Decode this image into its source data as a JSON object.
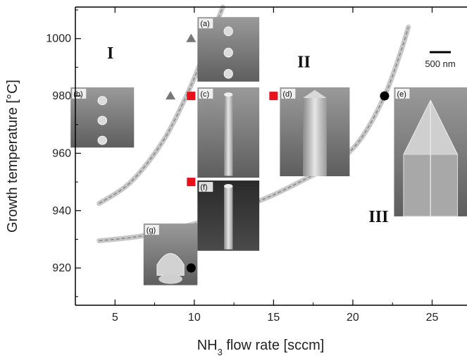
{
  "chart_data": {
    "type": "scatter",
    "title": "",
    "xlabel": "NH3 flow rate [sccm]",
    "xlabel_parts": {
      "base": "NH",
      "sub": "3",
      "rest": " flow rate [sccm]"
    },
    "ylabel": "Growth temperature [°C]",
    "xlim": [
      2.5,
      27.2
    ],
    "ylim": [
      907,
      1011
    ],
    "x_ticks": [
      5,
      10,
      15,
      20,
      25
    ],
    "y_ticks": [
      920,
      940,
      960,
      980,
      1000
    ],
    "grid": false,
    "legend": "none",
    "series": [
      {
        "marker": "triangle",
        "color": "#777777",
        "points": [
          {
            "x": 9.8,
            "y": 1000
          },
          {
            "x": 8.5,
            "y": 980
          }
        ]
      },
      {
        "marker": "square",
        "color": "#e8101a",
        "points": [
          {
            "x": 9.8,
            "y": 980
          },
          {
            "x": 15.0,
            "y": 980
          },
          {
            "x": 9.8,
            "y": 950
          }
        ]
      },
      {
        "marker": "circle",
        "color": "#000000",
        "points": [
          {
            "x": 22.0,
            "y": 980
          },
          {
            "x": 9.8,
            "y": 920
          }
        ]
      }
    ],
    "boundaries": [
      {
        "name": "I-II",
        "points": [
          [
            4.0,
            942.5
          ],
          [
            6.0,
            950
          ],
          [
            8.0,
            964
          ],
          [
            9.5,
            980
          ],
          [
            10.5,
            993
          ],
          [
            11.3,
            1004
          ],
          [
            11.8,
            1011
          ]
        ]
      },
      {
        "name": "II-III",
        "points": [
          [
            4.0,
            929.5
          ],
          [
            6.5,
            931
          ],
          [
            9.0,
            934
          ],
          [
            11.0,
            937
          ],
          [
            13.0,
            941
          ],
          [
            15.0,
            945.5
          ],
          [
            17.0,
            951
          ],
          [
            19.0,
            957
          ],
          [
            20.5,
            965
          ],
          [
            22.0,
            980
          ],
          [
            23.0,
            995
          ],
          [
            23.5,
            1004
          ]
        ]
      }
    ],
    "regions": [
      {
        "label": "I",
        "x": 4.5,
        "y": 993
      },
      {
        "label": "II",
        "x": 16.5,
        "y": 990
      },
      {
        "label": "III",
        "x": 21.0,
        "y": 936
      }
    ],
    "panels": [
      {
        "label": "(a)",
        "x0": 10.2,
        "x1": 14.1,
        "y0": 1007.5,
        "y1": 985,
        "kind": "dots"
      },
      {
        "label": "(b)",
        "x0": 2.2,
        "x1": 6.2,
        "y0": 983,
        "y1": 962,
        "kind": "dots"
      },
      {
        "label": "(c)",
        "x0": 10.2,
        "x1": 14.1,
        "y0": 983,
        "y1": 951.5,
        "kind": "wire"
      },
      {
        "label": "(d)",
        "x0": 15.4,
        "x1": 19.8,
        "y0": 983,
        "y1": 952,
        "kind": "wire-thick"
      },
      {
        "label": "(e)",
        "x0": 22.6,
        "x1": 27.2,
        "y0": 983,
        "y1": 938,
        "kind": "pyramid"
      },
      {
        "label": "(f)",
        "x0": 10.2,
        "x1": 14.1,
        "y0": 950.5,
        "y1": 926,
        "kind": "wire-dark"
      },
      {
        "label": "(g)",
        "x0": 6.8,
        "x1": 10.2,
        "y0": 935.5,
        "y1": 914,
        "kind": "mesa"
      }
    ],
    "scale_bar": {
      "label": "500 nm"
    }
  }
}
